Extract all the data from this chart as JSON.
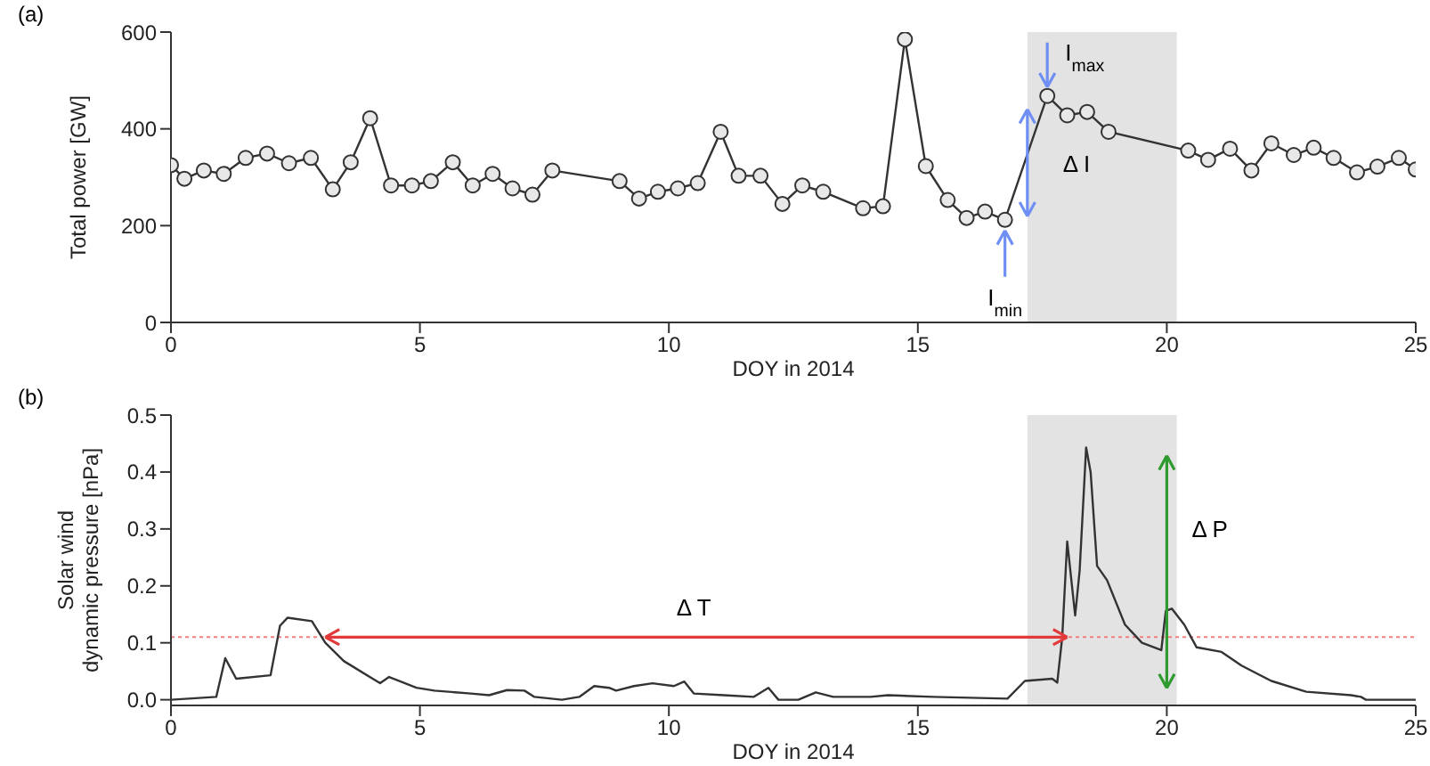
{
  "chart_data": [
    {
      "type": "line",
      "xlabel": "DOY in 2014",
      "ylabel": "Total power [GW]",
      "marker": "circle",
      "x": [
        0,
        0.27,
        0.66,
        1.06,
        1.5,
        1.93,
        2.37,
        2.81,
        3.25,
        3.61,
        4.0,
        4.42,
        4.84,
        5.22,
        5.66,
        6.06,
        6.46,
        6.86,
        7.26,
        7.66,
        9.01,
        9.4,
        9.78,
        10.18,
        10.58,
        11.04,
        11.4,
        11.84,
        12.28,
        12.68,
        13.1,
        13.9,
        14.3,
        14.74,
        15.16,
        15.6,
        15.98,
        16.35,
        16.75,
        17.6,
        18.0,
        18.4,
        18.83,
        20.43,
        20.83,
        21.27,
        21.7,
        22.1,
        22.55,
        22.95,
        23.35,
        23.82,
        24.23,
        24.66,
        25
      ],
      "series": [
        {
          "color": "#333333",
          "values": [
            325,
            297,
            314,
            307,
            340,
            349,
            329,
            340,
            275,
            331,
            422,
            283,
            283,
            292,
            331,
            283,
            307,
            277,
            264,
            314,
            292,
            256,
            270,
            277,
            288,
            394,
            303,
            303,
            245,
            283,
            270,
            236,
            240,
            585,
            323,
            253,
            216,
            229,
            212,
            468,
            428,
            435,
            394,
            355,
            336,
            359,
            314,
            370,
            346,
            361,
            340,
            310,
            322,
            340,
            316
          ]
        }
      ],
      "xlim": [
        0,
        25
      ],
      "xticks": [
        0,
        5,
        10,
        15,
        20,
        25
      ],
      "ylim": [
        0,
        600
      ],
      "yticks": [
        0,
        200,
        400,
        600
      ],
      "bands": [
        {
          "axis": "x",
          "from": 17.2,
          "to": 20.2,
          "color": "#e3e3e3"
        }
      ],
      "annotations": [
        "(a)",
        {
          "text": "I$_{max}$",
          "x": 17.6,
          "y": 468
        },
        {
          "text": "I$_{min}$",
          "x": 16.75,
          "y": 212
        },
        {
          "text": "Δ I",
          "x": 17.2,
          "y": 330
        }
      ]
    },
    {
      "type": "line",
      "xlabel": "DOY in 2014",
      "ylabel": "Solar wind\ndynamic pressure [nPa]",
      "marker": "none",
      "x": [
        0,
        0.91,
        1.09,
        1.31,
        2.0,
        2.19,
        2.34,
        2.83,
        3.1,
        3.47,
        4.2,
        4.38,
        4.93,
        5.29,
        6.02,
        6.39,
        6.75,
        7.1,
        7.3,
        7.85,
        8.2,
        8.5,
        8.8,
        8.94,
        9.3,
        9.67,
        10.1,
        10.31,
        10.5,
        11.1,
        11.7,
        12.0,
        12.2,
        12.6,
        12.95,
        13.3,
        14.05,
        14.4,
        15.3,
        16.8,
        17.15,
        17.7,
        17.8,
        17.9,
        18.0,
        18.16,
        18.25,
        18.38,
        18.47,
        18.6,
        18.8,
        19.16,
        19.5,
        19.89,
        19.98,
        20.1,
        20.35,
        20.6,
        21.1,
        21.5,
        22.1,
        22.8,
        23.7,
        23.9,
        24.0,
        25
      ],
      "series": [
        {
          "color": "#333333",
          "values": [
            0,
            0.005,
            0.073,
            0.037,
            0.043,
            0.13,
            0.144,
            0.138,
            0.1,
            0.068,
            0.029,
            0.04,
            0.021,
            0.016,
            0.011,
            0.008,
            0.017,
            0.016,
            0.005,
            0,
            0.005,
            0.024,
            0.021,
            0.016,
            0.024,
            0.029,
            0.024,
            0.032,
            0.011,
            0.008,
            0.005,
            0.021,
            0,
            0,
            0.013,
            0.005,
            0.005,
            0.008,
            0.005,
            0.002,
            0.033,
            0.037,
            0.03,
            0.11,
            0.278,
            0.148,
            0.227,
            0.443,
            0.4,
            0.235,
            0.21,
            0.132,
            0.1,
            0.087,
            0.156,
            0.16,
            0.132,
            0.092,
            0.084,
            0.06,
            0.033,
            0.014,
            0.008,
            0.005,
            0,
            0
          ]
        }
      ],
      "xlim": [
        0,
        25
      ],
      "xticks": [
        0,
        5,
        10,
        15,
        20,
        25
      ],
      "ylim": [
        -0.01,
        0.5
      ],
      "yticks": [
        {
          "value": 0,
          "label": "0.0"
        },
        0.1,
        0.2,
        0.3,
        0.4,
        0.5
      ],
      "bands": [
        {
          "axis": "x",
          "from": 17.2,
          "to": 20.2,
          "color": "#e3e3e3"
        }
      ],
      "ref_lines": [
        {
          "axis": "y",
          "value": 0.11,
          "color": "#f08080",
          "line_style": "dotted"
        },
        {
          "axis": "x",
          "value": 20,
          "label": "Δ P",
          "color": "#2f9a2f"
        }
      ],
      "annotations": [
        "(b)",
        {
          "text": "Δ T",
          "x": 10.5,
          "y": 0.11
        }
      ]
    }
  ]
}
